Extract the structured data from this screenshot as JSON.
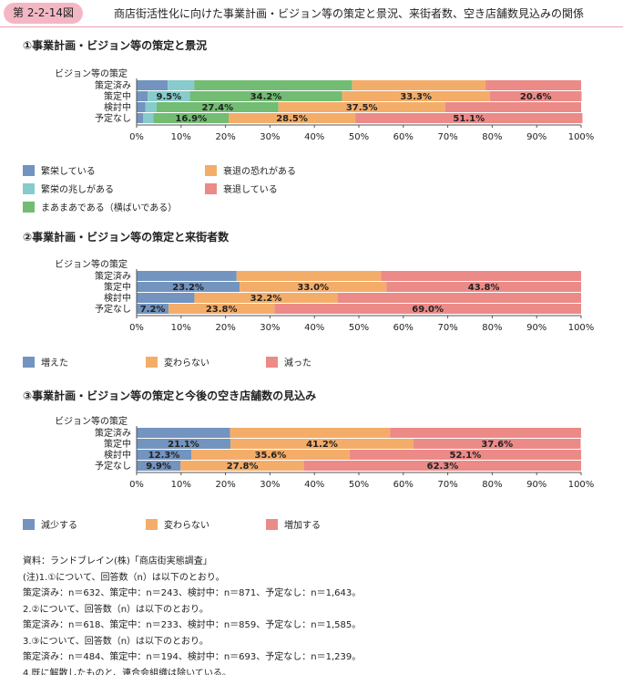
{
  "header": {
    "badge": "第 2-2-14図",
    "title": "商店街活性化に向けた事業計画・ビジョン等の策定と景況、来街者数、空き店舗数見込みの関係"
  },
  "colors": {
    "header_badge": "#f3b7c4",
    "blue": "#7394bf",
    "teal": "#88cbcc",
    "green": "#72bc73",
    "orange": "#f4ad69",
    "red": "#ec8a88"
  },
  "chart_data": [
    {
      "type": "bar",
      "orientation": "horizontal",
      "stacked": "percent",
      "title": "①事業計画・ビジョン等の策定と景況",
      "axis_header": "ビジョン等の策定",
      "categories": [
        "策定済み",
        "策定中",
        "検討中",
        "予定なし"
      ],
      "xlim": [
        0,
        100
      ],
      "x_ticks": [
        "0%",
        "10%",
        "20%",
        "30%",
        "40%",
        "50%",
        "60%",
        "70%",
        "80%",
        "90%",
        "100%"
      ],
      "legend_position": "bottom",
      "series": [
        {
          "name": "繁栄している",
          "color": "#7394bf",
          "values": [
            7.0,
            2.5,
            2.0,
            1.5
          ],
          "labels": [
            "",
            "",
            "",
            ""
          ]
        },
        {
          "name": "繁栄の兆しがある",
          "color": "#88cbcc",
          "values": [
            6.0,
            9.5,
            2.5,
            2.3
          ],
          "labels": [
            "",
            "9.5%",
            "",
            ""
          ]
        },
        {
          "name": "まあまあである（横ばいである）",
          "color": "#72bc73",
          "values": [
            35.5,
            34.2,
            27.4,
            16.9
          ],
          "labels": [
            "",
            "34.2%",
            "27.4%",
            "16.9%"
          ]
        },
        {
          "name": "衰退の恐れがある",
          "color": "#f4ad69",
          "values": [
            30.0,
            33.3,
            37.5,
            28.5
          ],
          "labels": [
            "",
            "33.3%",
            "37.5%",
            "28.5%"
          ]
        },
        {
          "name": "衰退している",
          "color": "#ec8a88",
          "values": [
            21.5,
            20.6,
            30.6,
            51.1
          ],
          "labels": [
            "",
            "20.6%",
            "",
            "51.1%"
          ]
        }
      ]
    },
    {
      "type": "bar",
      "orientation": "horizontal",
      "stacked": "percent",
      "title": "②事業計画・ビジョン等の策定と来街者数",
      "axis_header": "ビジョン等の策定",
      "categories": [
        "策定済み",
        "策定中",
        "検討中",
        "予定なし"
      ],
      "xlim": [
        0,
        100
      ],
      "x_ticks": [
        "0%",
        "10%",
        "20%",
        "30%",
        "40%",
        "50%",
        "60%",
        "70%",
        "80%",
        "90%",
        "100%"
      ],
      "legend_position": "bottom",
      "series": [
        {
          "name": "増えた",
          "color": "#7394bf",
          "values": [
            22.5,
            23.2,
            13.0,
            7.2
          ],
          "labels": [
            "",
            "23.2%",
            "",
            "7.2%"
          ]
        },
        {
          "name": "変わらない",
          "color": "#f4ad69",
          "values": [
            32.5,
            33.0,
            32.2,
            23.8
          ],
          "labels": [
            "",
            "33.0%",
            "32.2%",
            "23.8%"
          ]
        },
        {
          "name": "減った",
          "color": "#ec8a88",
          "values": [
            45.0,
            43.8,
            54.8,
            69.0
          ],
          "labels": [
            "",
            "43.8%",
            "",
            "69.0%"
          ]
        }
      ]
    },
    {
      "type": "bar",
      "orientation": "horizontal",
      "stacked": "percent",
      "title": "③事業計画・ビジョン等の策定と今後の空き店舗数の見込み",
      "axis_header": "ビジョン等の策定",
      "categories": [
        "策定済み",
        "策定中",
        "検討中",
        "予定なし"
      ],
      "xlim": [
        0,
        100
      ],
      "x_ticks": [
        "0%",
        "10%",
        "20%",
        "30%",
        "40%",
        "50%",
        "60%",
        "70%",
        "80%",
        "90%",
        "100%"
      ],
      "legend_position": "bottom",
      "series": [
        {
          "name": "減少する",
          "color": "#7394bf",
          "values": [
            21.0,
            21.1,
            12.3,
            9.9
          ],
          "labels": [
            "",
            "21.1%",
            "12.3%",
            "9.9%"
          ]
        },
        {
          "name": "変わらない",
          "color": "#f4ad69",
          "values": [
            36.0,
            41.2,
            35.6,
            27.8
          ],
          "labels": [
            "",
            "41.2%",
            "35.6%",
            "27.8%"
          ]
        },
        {
          "name": "増加する",
          "color": "#ec8a88",
          "values": [
            43.0,
            37.6,
            52.1,
            62.3
          ],
          "labels": [
            "",
            "37.6%",
            "52.1%",
            "62.3%"
          ]
        }
      ]
    }
  ],
  "notes": [
    "資料：ランドブレイン(株)「商店街実態調査」",
    "(注)1.①について、回答数（n）は以下のとおり。",
    "策定済み：n＝632、策定中：n＝243、検討中：n＝871、予定なし：n＝1,643。",
    "2.②について、回答数（n）は以下のとおり。",
    "策定済み：n＝618、策定中：n＝233、検討中：n＝859、予定なし：n＝1,585。",
    "3.③について、回答数（n）は以下のとおり。",
    "策定済み：n＝484、策定中：n＝194、検討中：n＝693、予定なし：n＝1,239。",
    "4.既に解散したものと、連合会組織は除いている。"
  ]
}
